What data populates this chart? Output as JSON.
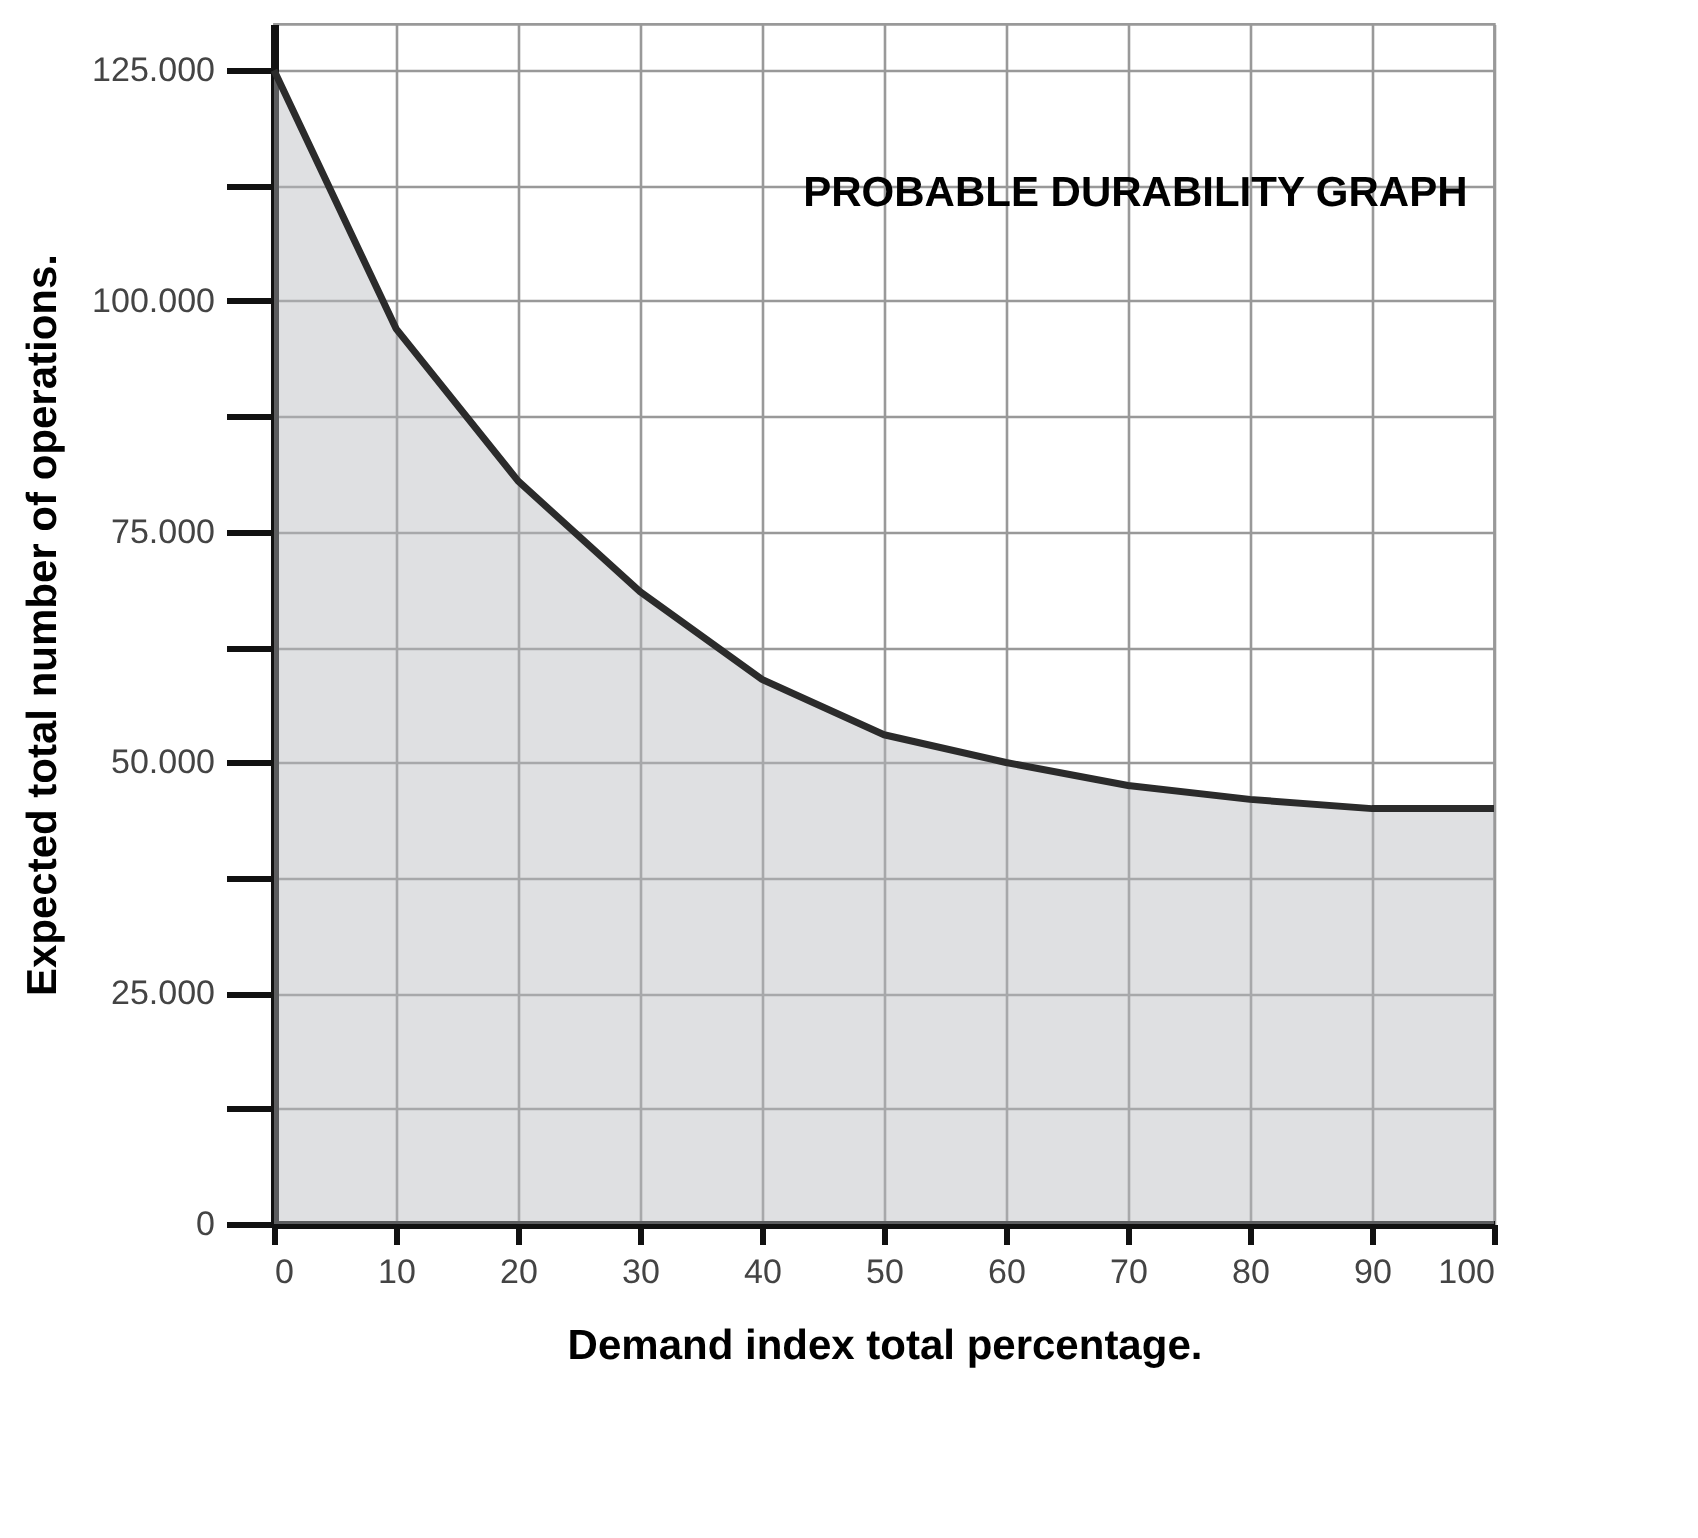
{
  "chart_data": {
    "type": "area",
    "title": "PROBABLE DURABILITY GRAPH",
    "xlabel": "Demand index total percentage.",
    "ylabel": "Expected total number of operations.",
    "x": [
      0,
      10,
      20,
      30,
      40,
      50,
      60,
      70,
      80,
      90,
      100
    ],
    "series": [
      {
        "color": "#2b2b2b",
        "values": [
          125000,
          97000,
          80500,
          68500,
          59000,
          53000,
          50000,
          47500,
          46000,
          45000,
          45000
        ]
      }
    ],
    "xlim": [
      0,
      100
    ],
    "xticks": [
      0,
      10,
      20,
      30,
      40,
      50,
      60,
      70,
      80,
      90,
      100
    ],
    "ylim": [
      0,
      130000
    ],
    "yticks": [
      {
        "value": 0,
        "label": "0"
      },
      {
        "value": 12500,
        "label": null
      },
      {
        "value": 25000,
        "label": "25.000"
      },
      {
        "value": 37500,
        "label": null
      },
      {
        "value": 50000,
        "label": "50.000"
      },
      {
        "value": 62500,
        "label": null
      },
      {
        "value": 75000,
        "label": "75.000"
      },
      {
        "value": 87500,
        "label": null
      },
      {
        "value": 100000,
        "label": "100.000"
      },
      {
        "value": 112500,
        "label": null
      },
      {
        "value": 125000,
        "label": "125.000"
      }
    ],
    "grid": true
  }
}
